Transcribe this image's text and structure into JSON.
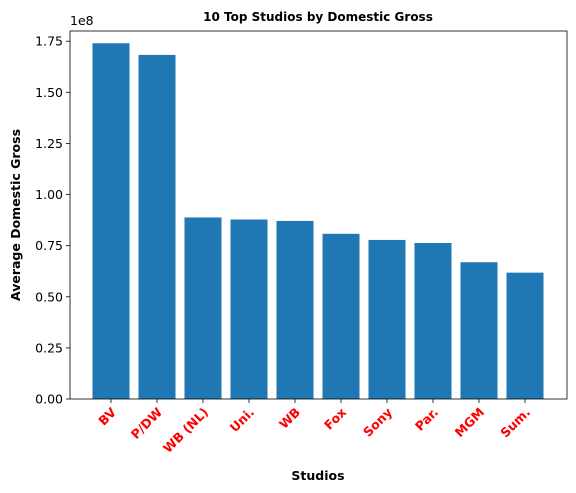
{
  "chart_data": {
    "type": "bar",
    "title": "10 Top Studios by Domestic Gross",
    "xlabel": "Studios",
    "ylabel": "Average Domestic Gross",
    "y_offset_label": "1e8",
    "categories": [
      "BV",
      "P/DW",
      "WB (NL)",
      "Uni.",
      "WB",
      "Fox",
      "Sony",
      "Par.",
      "MGM",
      "Sum."
    ],
    "values": [
      174000000,
      168300000,
      88800000,
      87800000,
      87100000,
      80800000,
      77800000,
      76300000,
      66900000,
      61800000
    ],
    "ylim": [
      0,
      180000000
    ],
    "yticks": [
      0,
      25000000,
      50000000,
      75000000,
      100000000,
      125000000,
      150000000,
      175000000
    ],
    "ytick_labels": [
      "0.00",
      "0.25",
      "0.50",
      "0.75",
      "1.00",
      "1.25",
      "1.50",
      "1.75"
    ],
    "grid": false,
    "bar_color": "#1f77b4",
    "xtick_color": "#ff0000"
  }
}
